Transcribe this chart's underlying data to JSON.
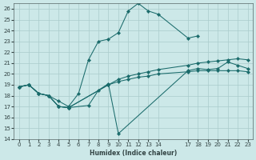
{
  "xlabel": "Humidex (Indice chaleur)",
  "bg_color": "#cce8e8",
  "grid_color": "#aacccc",
  "line_color": "#1a6b6b",
  "xlim": [
    -0.5,
    23.5
  ],
  "ylim": [
    14,
    26.5
  ],
  "xticks": [
    0,
    1,
    2,
    3,
    4,
    5,
    6,
    7,
    8,
    9,
    10,
    11,
    12,
    13,
    14,
    17,
    18,
    19,
    20,
    21,
    22,
    23
  ],
  "yticks": [
    14,
    15,
    16,
    17,
    18,
    19,
    20,
    21,
    22,
    23,
    24,
    25,
    26
  ],
  "series": [
    {
      "x": [
        0,
        1,
        2,
        3,
        4,
        5,
        6,
        7,
        8,
        9,
        10,
        11,
        12,
        13,
        14,
        17,
        18
      ],
      "y": [
        18.8,
        19.0,
        18.2,
        18.0,
        17.5,
        17.0,
        18.2,
        21.3,
        23.0,
        23.2,
        23.8,
        25.8,
        26.5,
        25.8,
        25.5,
        23.3,
        23.5
      ]
    },
    {
      "x": [
        0,
        1,
        2,
        3,
        4,
        5,
        7,
        8,
        9,
        10,
        17,
        18,
        19,
        20,
        21,
        22,
        23
      ],
      "y": [
        18.8,
        19.0,
        18.2,
        18.0,
        17.0,
        16.9,
        17.1,
        18.5,
        19.1,
        14.5,
        20.3,
        20.5,
        20.4,
        20.5,
        21.1,
        20.8,
        20.5
      ]
    },
    {
      "x": [
        0,
        1,
        2,
        3,
        4,
        5,
        9,
        10,
        11,
        12,
        13,
        14,
        17,
        18,
        19,
        20,
        21,
        22,
        23
      ],
      "y": [
        18.8,
        19.0,
        18.2,
        18.0,
        17.0,
        16.9,
        19.0,
        19.5,
        19.8,
        20.0,
        20.2,
        20.4,
        20.8,
        21.0,
        21.1,
        21.2,
        21.3,
        21.4,
        21.3
      ]
    },
    {
      "x": [
        0,
        1,
        2,
        3,
        4,
        5,
        9,
        10,
        11,
        12,
        13,
        14,
        17,
        18,
        19,
        20,
        21,
        22,
        23
      ],
      "y": [
        18.8,
        19.0,
        18.2,
        18.0,
        17.0,
        16.9,
        19.0,
        19.3,
        19.5,
        19.7,
        19.8,
        20.0,
        20.2,
        20.3,
        20.3,
        20.3,
        20.3,
        20.3,
        20.2
      ]
    }
  ]
}
